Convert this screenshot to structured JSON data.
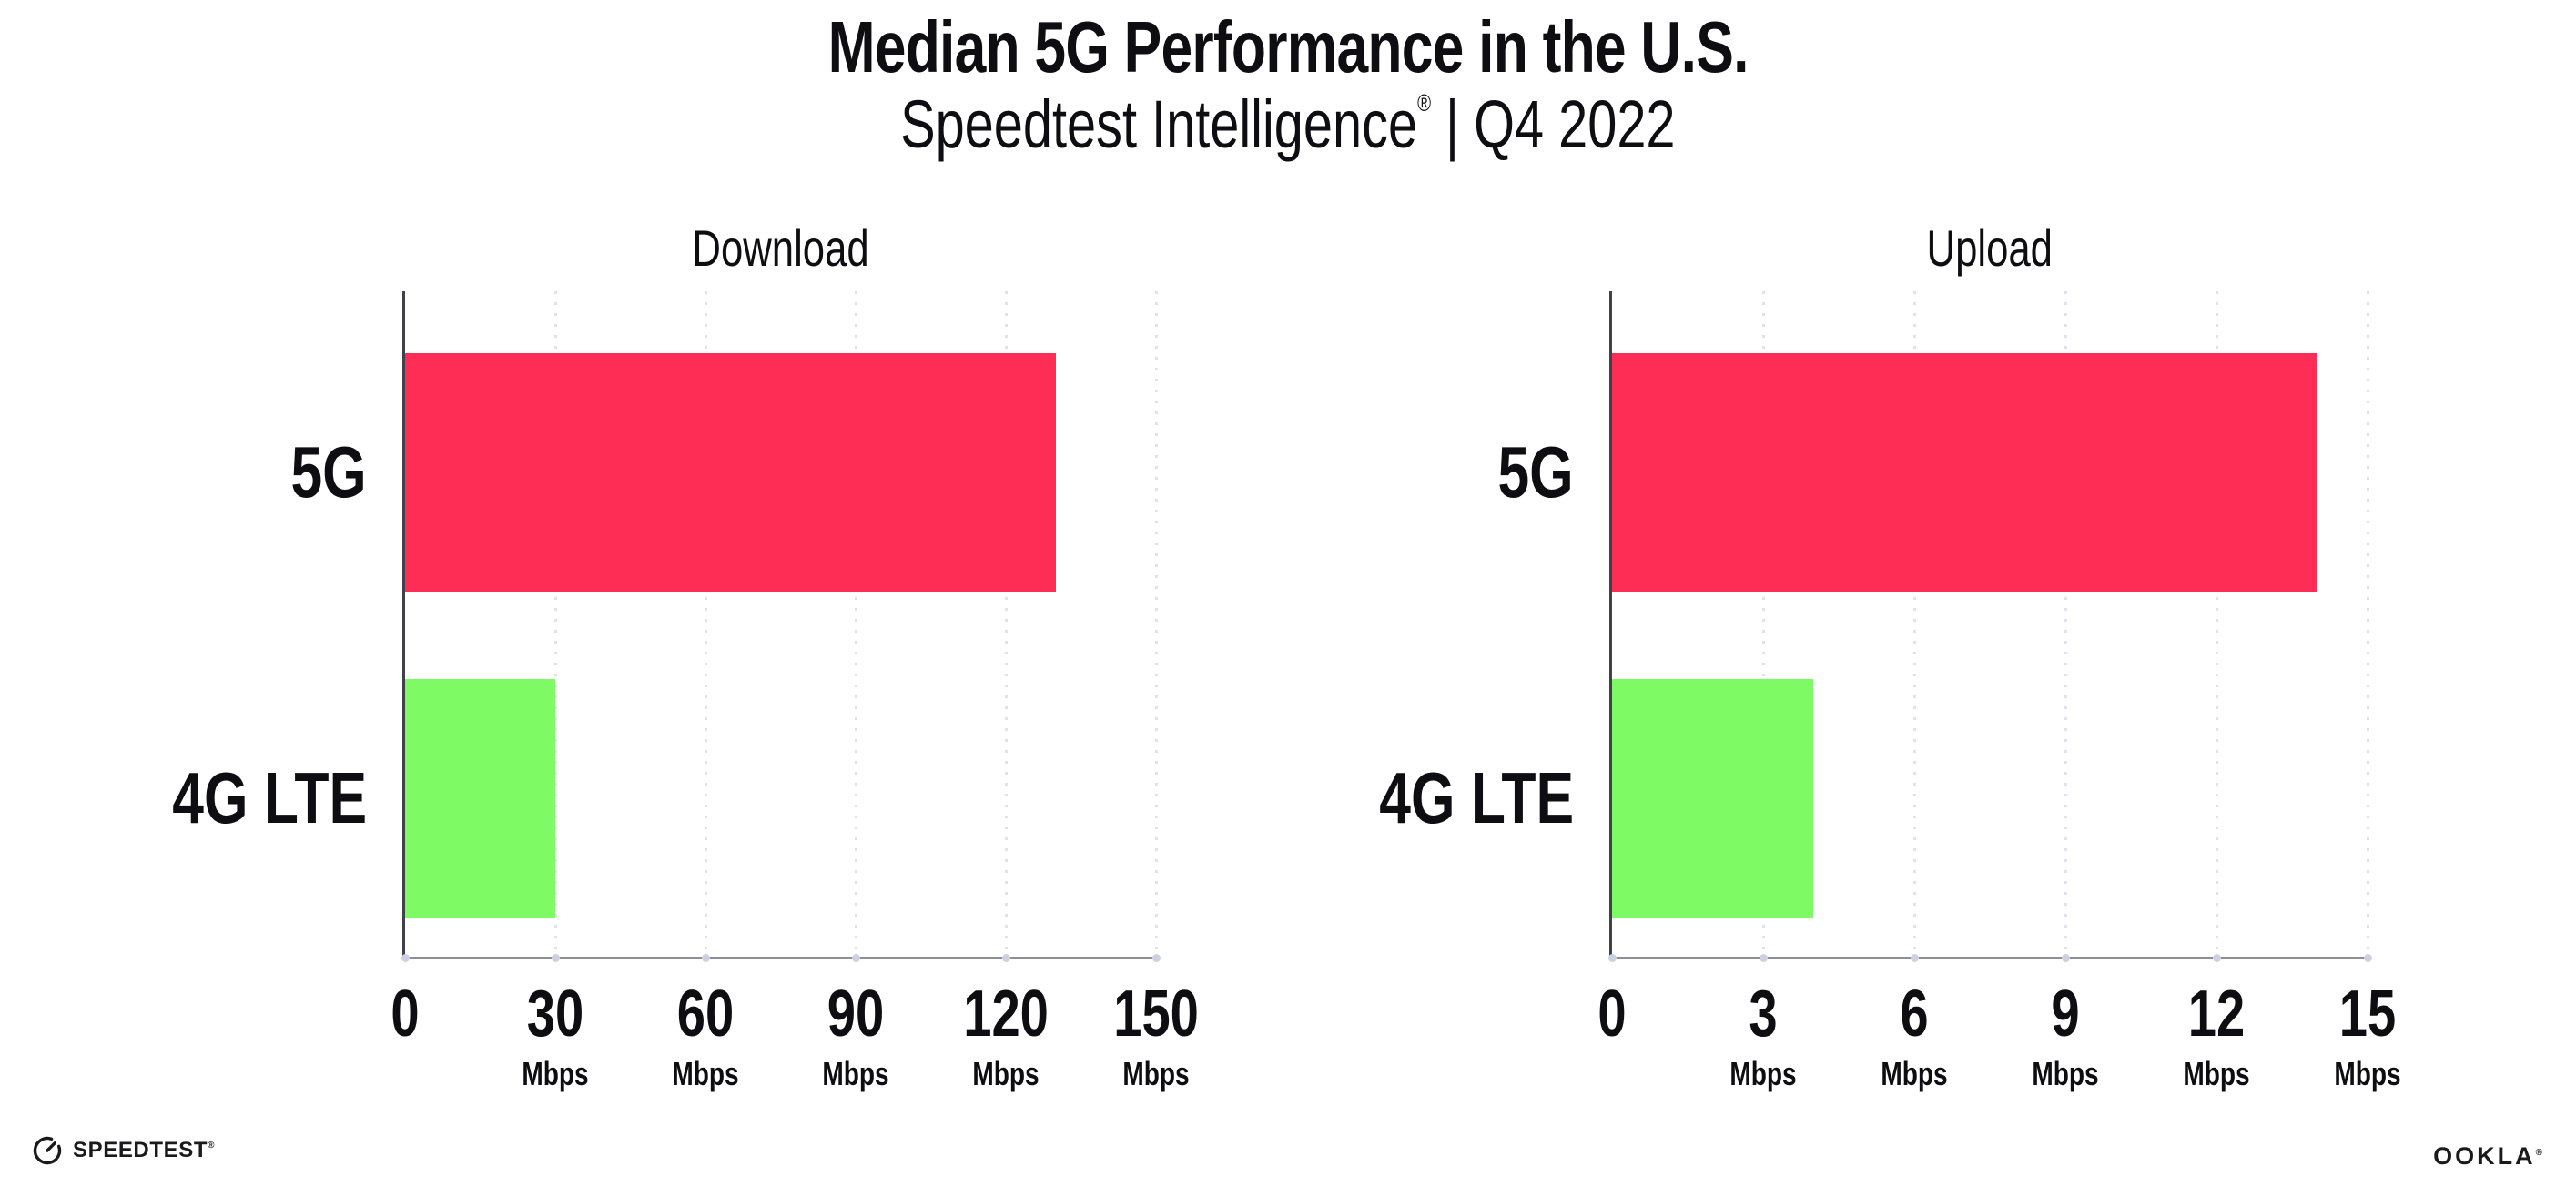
{
  "header": {
    "title": "Median 5G Performance in the U.S.",
    "subtitle_brand": "Speedtest Intelligence",
    "subtitle_reg": "®",
    "subtitle_rest": " | Q4 2022"
  },
  "chart_data": [
    {
      "type": "bar",
      "orientation": "horizontal",
      "title": "Download",
      "categories": [
        "5G",
        "4G LTE"
      ],
      "values": [
        130,
        30
      ],
      "unit": "Mbps",
      "xlabel": "",
      "ylabel": "",
      "xlim": [
        0,
        150
      ],
      "ticks": [
        0,
        30,
        60,
        90,
        120,
        150
      ],
      "tick_unit": "Mbps",
      "bar_colors": [
        "#fd2d55",
        "#7dfa64"
      ],
      "grid": "dotted vertical gridlines at each tick",
      "legend": "none"
    },
    {
      "type": "bar",
      "orientation": "horizontal",
      "title": "Upload",
      "categories": [
        "5G",
        "4G LTE"
      ],
      "values": [
        14,
        4
      ],
      "unit": "Mbps",
      "xlabel": "",
      "ylabel": "",
      "xlim": [
        0,
        15
      ],
      "ticks": [
        0,
        3,
        6,
        9,
        12,
        15
      ],
      "tick_unit": "Mbps",
      "bar_colors": [
        "#fd2d55",
        "#7dfa64"
      ],
      "grid": "dotted vertical gridlines at each tick",
      "legend": "none"
    }
  ],
  "footer": {
    "speedtest_label": "SPEEDTEST",
    "speedtest_reg": "®",
    "ookla_label": "OOKLA",
    "ookla_reg": "®"
  },
  "colors": {
    "bar_5g": "#fd2d55",
    "bar_4g_lte": "#7dfa64",
    "text": "#0d0d12",
    "y_axis_line": "#41414c",
    "x_axis_line": "#8e8e96",
    "gridline": "#dfe2ee",
    "tick_dot": "#ccd1e2",
    "background": "#ffffff"
  }
}
